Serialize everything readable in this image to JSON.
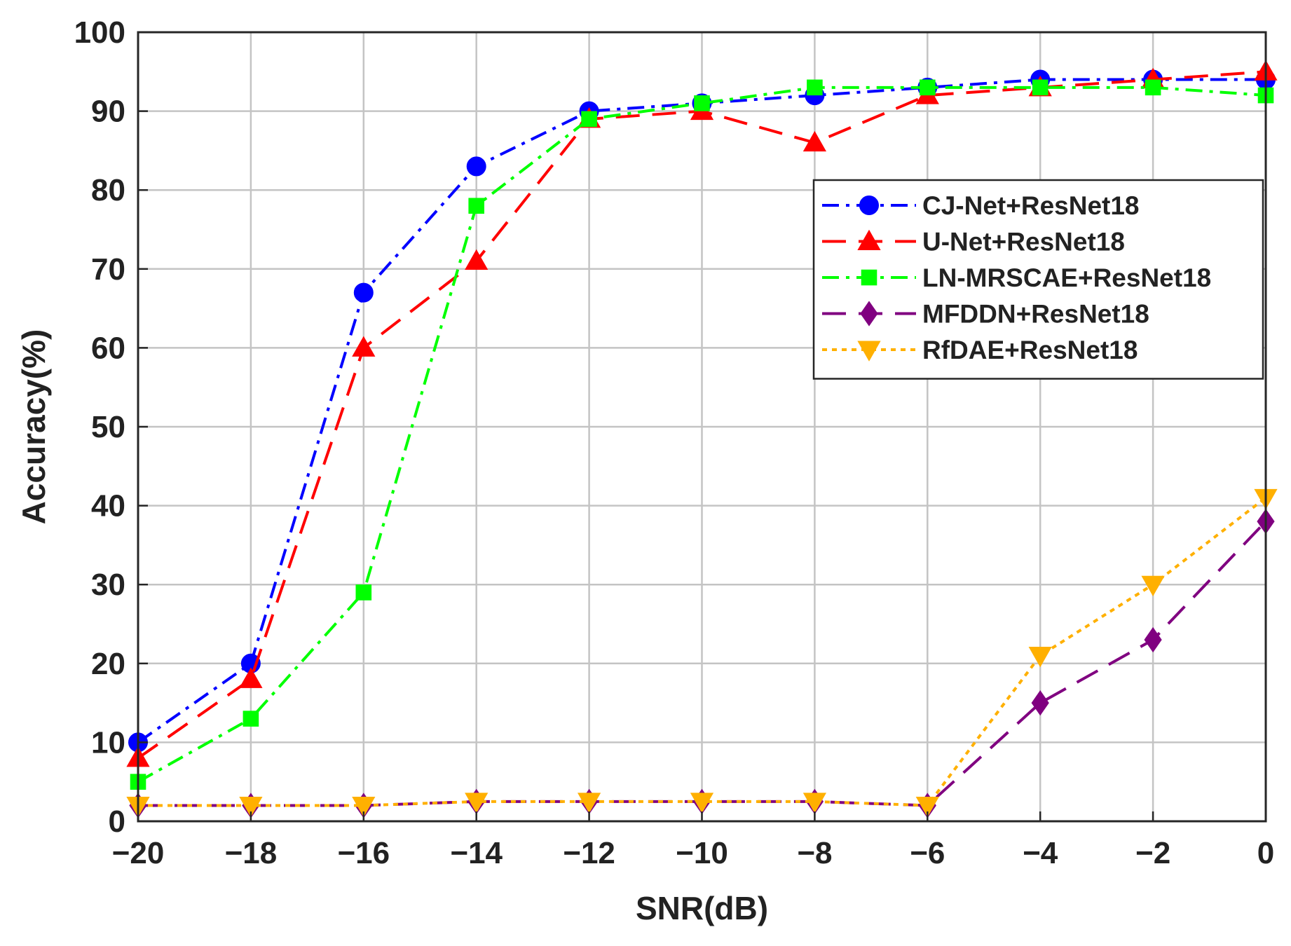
{
  "chart_data": {
    "type": "line",
    "title": "",
    "xlabel": "SNR(dB)",
    "ylabel": "Accuracy(%)",
    "xlim": [
      -20,
      0
    ],
    "ylim": [
      0,
      100
    ],
    "x": [
      -20,
      -18,
      -16,
      -14,
      -12,
      -10,
      -8,
      -6,
      -4,
      -2,
      0
    ],
    "xticks": [
      -20,
      -18,
      -16,
      -14,
      -12,
      -10,
      -8,
      -6,
      -4,
      -2,
      0
    ],
    "xtick_labels": [
      "−20",
      "−18",
      "−16",
      "−14",
      "−12",
      "−10",
      "−8",
      "−6",
      "−4",
      "−2",
      "0"
    ],
    "yticks": [
      0,
      10,
      20,
      30,
      40,
      50,
      60,
      70,
      80,
      90,
      100
    ],
    "ytick_labels": [
      "0",
      "10",
      "20",
      "30",
      "40",
      "50",
      "60",
      "70",
      "80",
      "90",
      "100"
    ],
    "grid": true,
    "legend_position": "upper-right",
    "series": [
      {
        "name": "CJ-Net+ResNet18",
        "color": "#0000ff",
        "marker": "circle",
        "line": "dash-dot",
        "values": [
          10,
          20,
          67,
          83,
          90,
          91,
          92,
          93,
          94,
          94,
          94
        ]
      },
      {
        "name": "U-Net+ResNet18",
        "color": "#ff0000",
        "marker": "triangle-up",
        "line": "dash",
        "values": [
          8,
          18,
          60,
          71,
          89,
          90,
          86,
          92,
          93,
          94,
          95
        ]
      },
      {
        "name": "LN-MRSCAE+ResNet18",
        "color": "#00ff00",
        "marker": "square",
        "line": "dash-dot",
        "values": [
          5,
          13,
          29,
          78,
          89,
          91,
          93,
          93,
          93,
          93,
          92
        ]
      },
      {
        "name": "MFDDN+ResNet18",
        "color": "#800080",
        "marker": "diamond",
        "line": "dash",
        "values": [
          2,
          2,
          2,
          2.5,
          2.5,
          2.5,
          2.5,
          2,
          15,
          23,
          38
        ]
      },
      {
        "name": "RfDAE+ResNet18",
        "color": "#ffb000",
        "marker": "triangle-down",
        "line": "dot",
        "values": [
          2,
          2,
          2,
          2.5,
          2.5,
          2.5,
          2.5,
          2,
          21,
          30,
          41
        ]
      }
    ]
  }
}
